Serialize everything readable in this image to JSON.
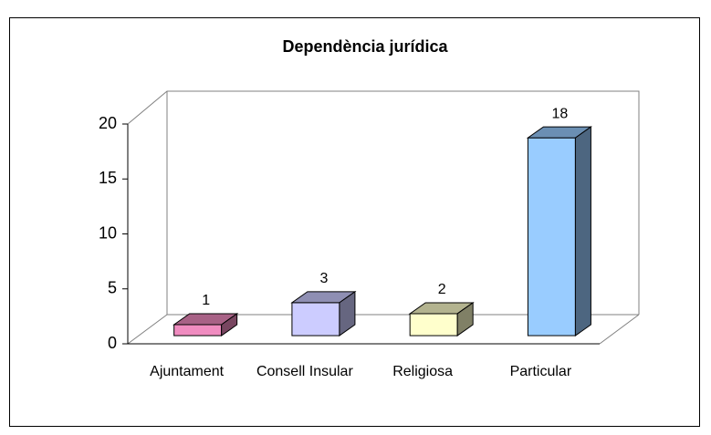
{
  "chart_data": {
    "type": "bar3d",
    "title": "Dependència jurídica",
    "categories": [
      "Ajuntament",
      "Consell Insular",
      "Religiosa",
      "Particular"
    ],
    "values": [
      1,
      3,
      2,
      18
    ],
    "colors": [
      "#f08cc0",
      "#ccccff",
      "#ffffcc",
      "#99ccff"
    ],
    "ylim": [
      0,
      20
    ],
    "yticks": [
      0,
      5,
      10,
      15,
      20
    ],
    "grid": false,
    "data_labels": true
  }
}
